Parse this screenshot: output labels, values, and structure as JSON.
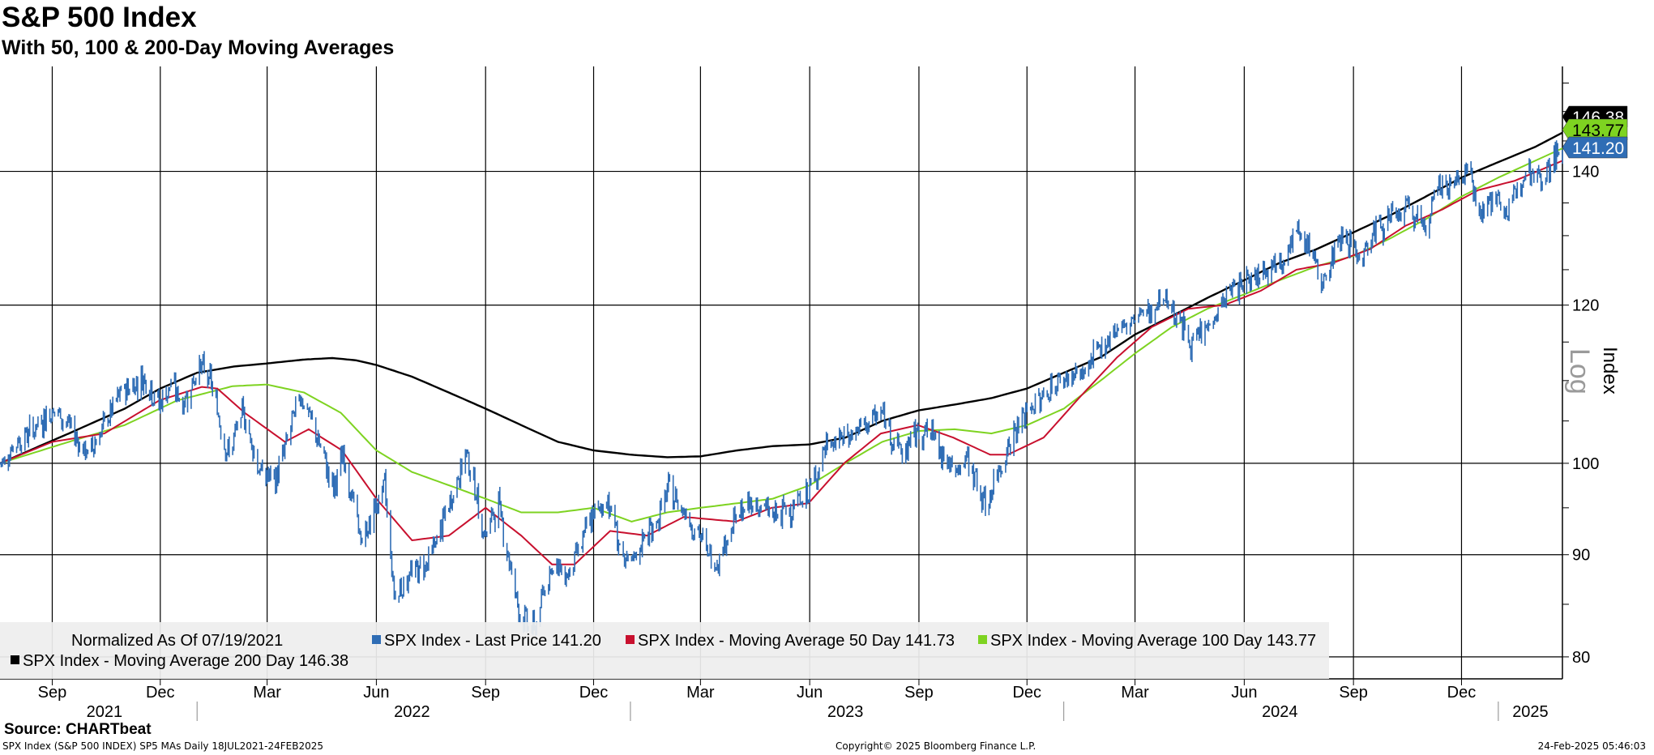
{
  "title": "S&P 500 Index",
  "subtitle": "With 50, 100 & 200-Day Moving Averages",
  "source": "Source: CHARTbeat",
  "footer": {
    "left": "SPX Index (S&P 500 INDEX) SP5 MAs  Daily 18JUL2021-24FEB2025",
    "center": "Copyright© 2025 Bloomberg Finance L.P.",
    "right": "24-Feb-2025 05:46:03"
  },
  "colors": {
    "price": "#2f6db5",
    "ma50": "#c8102e",
    "ma100": "#7ed321",
    "ma200": "#000000",
    "grid": "#000000",
    "legend_bg": "#eeeeee"
  },
  "chart_data": {
    "type": "line",
    "yscale": "log",
    "ylabel": "Index",
    "scale_label": "Log",
    "ylim": [
      78,
      158
    ],
    "yticks": [
      80,
      90,
      100,
      120,
      140
    ],
    "xlim": [
      "2021-07-19",
      "2025-02-24"
    ],
    "month_ticks": [
      "Sep",
      "Dec",
      "Mar",
      "Jun",
      "Sep",
      "Dec",
      "Mar",
      "Jun",
      "Sep",
      "Dec",
      "Mar",
      "Jun",
      "Sep",
      "Dec"
    ],
    "month_dates": [
      "2021-09-01",
      "2021-12-01",
      "2022-03-01",
      "2022-06-01",
      "2022-09-01",
      "2022-12-01",
      "2023-03-01",
      "2023-06-01",
      "2023-09-01",
      "2023-12-01",
      "2024-03-01",
      "2024-06-01",
      "2024-09-01",
      "2024-12-01"
    ],
    "years": [
      "2021",
      "2022",
      "2023",
      "2024",
      "2025"
    ],
    "year_label_dates": [
      "2021-10-15",
      "2022-07-01",
      "2023-07-01",
      "2024-07-01",
      "2025-01-28"
    ],
    "year_boundaries": [
      "2022-01-01",
      "2023-01-01",
      "2024-01-01",
      "2025-01-01"
    ],
    "legend": {
      "normalized": "Normalized As Of 07/19/2021",
      "entries": [
        "SPX Index - Last Price 141.20",
        "SPX Index - Moving Average 50 Day 141.73",
        "SPX Index - Moving Average 100 Day 143.77",
        "SPX Index - Moving Average 200 Day 146.38"
      ]
    },
    "last_value_labels": [
      "146.38",
      "143.77",
      "141.20"
    ],
    "series": [
      {
        "name": "SPX Index - Last Price",
        "points": [
          [
            "2021-07-19",
            100
          ],
          [
            "2021-08-02",
            102.5
          ],
          [
            "2021-08-16",
            104
          ],
          [
            "2021-09-02",
            106.5
          ],
          [
            "2021-09-15",
            104.5
          ],
          [
            "2021-09-30",
            101
          ],
          [
            "2021-10-15",
            104.5
          ],
          [
            "2021-10-29",
            108.5
          ],
          [
            "2021-11-18",
            110.5
          ],
          [
            "2021-11-30",
            107
          ],
          [
            "2021-12-10",
            109.5
          ],
          [
            "2021-12-20",
            107
          ],
          [
            "2022-01-03",
            112
          ],
          [
            "2022-01-12",
            110
          ],
          [
            "2022-01-27",
            101
          ],
          [
            "2022-02-09",
            106
          ],
          [
            "2022-02-23",
            99
          ],
          [
            "2022-03-08",
            98
          ],
          [
            "2022-03-29",
            108.5
          ],
          [
            "2022-04-12",
            103
          ],
          [
            "2022-04-26",
            97
          ],
          [
            "2022-05-04",
            101
          ],
          [
            "2022-05-20",
            91
          ],
          [
            "2022-05-31",
            95
          ],
          [
            "2022-06-08",
            97.5
          ],
          [
            "2022-06-16",
            86
          ],
          [
            "2022-06-30",
            88
          ],
          [
            "2022-07-15",
            89.5
          ],
          [
            "2022-08-01",
            95
          ],
          [
            "2022-08-16",
            101.5
          ],
          [
            "2022-08-31",
            92
          ],
          [
            "2022-09-12",
            95.5
          ],
          [
            "2022-09-20",
            90
          ],
          [
            "2022-09-30",
            84
          ],
          [
            "2022-10-12",
            82.5
          ],
          [
            "2022-10-26",
            89
          ],
          [
            "2022-11-09",
            88
          ],
          [
            "2022-11-30",
            94
          ],
          [
            "2022-12-13",
            96
          ],
          [
            "2022-12-28",
            88.5
          ],
          [
            "2023-01-10",
            91
          ],
          [
            "2023-01-25",
            94
          ],
          [
            "2023-02-02",
            97
          ],
          [
            "2023-02-17",
            94.5
          ],
          [
            "2023-03-13",
            89
          ],
          [
            "2023-03-31",
            94
          ],
          [
            "2023-04-15",
            95.5
          ],
          [
            "2023-05-04",
            94
          ],
          [
            "2023-05-31",
            96.5
          ],
          [
            "2023-06-15",
            102
          ],
          [
            "2023-07-14",
            104
          ],
          [
            "2023-07-31",
            106
          ],
          [
            "2023-08-18",
            101
          ],
          [
            "2023-09-01",
            104
          ],
          [
            "2023-09-15",
            103
          ],
          [
            "2023-09-29",
            99
          ],
          [
            "2023-10-13",
            100.5
          ],
          [
            "2023-10-27",
            95
          ],
          [
            "2023-11-13",
            101.5
          ],
          [
            "2023-11-30",
            106
          ],
          [
            "2023-12-14",
            108
          ],
          [
            "2023-12-29",
            110
          ],
          [
            "2024-01-19",
            111
          ],
          [
            "2024-02-09",
            116
          ],
          [
            "2024-02-29",
            118
          ],
          [
            "2024-03-28",
            121
          ],
          [
            "2024-04-19",
            114.5
          ],
          [
            "2024-05-03",
            117.5
          ],
          [
            "2024-05-21",
            122
          ],
          [
            "2024-06-14",
            125
          ],
          [
            "2024-06-28",
            126
          ],
          [
            "2024-07-16",
            130
          ],
          [
            "2024-07-31",
            127
          ],
          [
            "2024-08-05",
            121
          ],
          [
            "2024-08-16",
            128.5
          ],
          [
            "2024-08-30",
            130
          ],
          [
            "2024-09-06",
            126
          ],
          [
            "2024-09-19",
            131
          ],
          [
            "2024-10-18",
            134
          ],
          [
            "2024-11-01",
            131.5
          ],
          [
            "2024-11-11",
            137
          ],
          [
            "2024-11-29",
            139
          ],
          [
            "2024-12-06",
            140
          ],
          [
            "2024-12-18",
            134
          ],
          [
            "2024-12-31",
            136
          ],
          [
            "2025-01-10",
            133
          ],
          [
            "2025-01-23",
            141
          ],
          [
            "2025-02-07",
            139
          ],
          [
            "2025-02-19",
            143
          ],
          [
            "2025-02-24",
            141.2
          ]
        ]
      },
      {
        "name": "SPX Index - Moving Average 50 Day",
        "points": [
          [
            "2021-07-19",
            100
          ],
          [
            "2021-09-01",
            102.5
          ],
          [
            "2021-10-15",
            103.5
          ],
          [
            "2021-11-30",
            107.5
          ],
          [
            "2022-01-05",
            109.2
          ],
          [
            "2022-01-18",
            109
          ],
          [
            "2022-02-10",
            106
          ],
          [
            "2022-03-16",
            102.5
          ],
          [
            "2022-04-05",
            104
          ],
          [
            "2022-05-03",
            101.5
          ],
          [
            "2022-06-01",
            96
          ],
          [
            "2022-07-01",
            91.5
          ],
          [
            "2022-08-01",
            92
          ],
          [
            "2022-09-01",
            95
          ],
          [
            "2022-10-01",
            92
          ],
          [
            "2022-10-27",
            89
          ],
          [
            "2022-11-15",
            89
          ],
          [
            "2022-12-15",
            92.5
          ],
          [
            "2023-01-15",
            92
          ],
          [
            "2023-02-15",
            94
          ],
          [
            "2023-03-31",
            93.5
          ],
          [
            "2023-04-30",
            95
          ],
          [
            "2023-05-31",
            95.5
          ],
          [
            "2023-06-30",
            100
          ],
          [
            "2023-07-31",
            103.5
          ],
          [
            "2023-08-31",
            104.5
          ],
          [
            "2023-09-30",
            103
          ],
          [
            "2023-10-31",
            101
          ],
          [
            "2023-11-15",
            101
          ],
          [
            "2023-12-15",
            103
          ],
          [
            "2024-01-15",
            108
          ],
          [
            "2024-02-15",
            113
          ],
          [
            "2024-03-15",
            117
          ],
          [
            "2024-04-15",
            119.5
          ],
          [
            "2024-05-15",
            120
          ],
          [
            "2024-06-15",
            122
          ],
          [
            "2024-07-15",
            125
          ],
          [
            "2024-08-15",
            126
          ],
          [
            "2024-09-15",
            128
          ],
          [
            "2024-10-15",
            131.5
          ],
          [
            "2024-11-15",
            134
          ],
          [
            "2024-12-15",
            137
          ],
          [
            "2025-01-15",
            138.5
          ],
          [
            "2025-02-24",
            141.73
          ]
        ]
      },
      {
        "name": "SPX Index - Moving Average 100 Day",
        "points": [
          [
            "2021-07-19",
            100
          ],
          [
            "2021-09-15",
            102.5
          ],
          [
            "2021-11-01",
            104.5
          ],
          [
            "2021-12-15",
            107.5
          ],
          [
            "2022-01-31",
            109.3
          ],
          [
            "2022-03-01",
            109.5
          ],
          [
            "2022-04-01",
            108.5
          ],
          [
            "2022-05-02",
            106
          ],
          [
            "2022-06-01",
            101.5
          ],
          [
            "2022-07-01",
            99
          ],
          [
            "2022-08-01",
            97.5
          ],
          [
            "2022-09-01",
            96
          ],
          [
            "2022-10-01",
            94.5
          ],
          [
            "2022-11-01",
            94.5
          ],
          [
            "2022-12-01",
            95
          ],
          [
            "2023-01-02",
            93.5
          ],
          [
            "2023-02-01",
            94.5
          ],
          [
            "2023-03-01",
            95
          ],
          [
            "2023-04-01",
            95.5
          ],
          [
            "2023-05-01",
            96
          ],
          [
            "2023-06-01",
            97.5
          ],
          [
            "2023-07-01",
            100
          ],
          [
            "2023-08-01",
            102.5
          ],
          [
            "2023-09-01",
            103.8
          ],
          [
            "2023-10-01",
            104
          ],
          [
            "2023-11-01",
            103.5
          ],
          [
            "2023-12-01",
            104.5
          ],
          [
            "2024-01-01",
            106.5
          ],
          [
            "2024-02-01",
            110
          ],
          [
            "2024-03-01",
            113.5
          ],
          [
            "2024-04-01",
            117
          ],
          [
            "2024-05-01",
            119.5
          ],
          [
            "2024-06-01",
            121.5
          ],
          [
            "2024-07-01",
            123.5
          ],
          [
            "2024-08-01",
            125.5
          ],
          [
            "2024-09-01",
            127
          ],
          [
            "2024-10-01",
            129.5
          ],
          [
            "2024-11-01",
            132.5
          ],
          [
            "2024-12-01",
            136
          ],
          [
            "2025-01-01",
            139
          ],
          [
            "2025-02-24",
            143.77
          ]
        ]
      },
      {
        "name": "SPX Index - Moving Average 200 Day",
        "points": [
          [
            "2021-07-19",
            100
          ],
          [
            "2021-09-15",
            103.5
          ],
          [
            "2021-11-01",
            106.5
          ],
          [
            "2021-12-01",
            109
          ],
          [
            "2022-01-01",
            111
          ],
          [
            "2022-02-01",
            111.8
          ],
          [
            "2022-03-01",
            112.2
          ],
          [
            "2022-04-01",
            112.7
          ],
          [
            "2022-04-25",
            112.9
          ],
          [
            "2022-05-15",
            112.6
          ],
          [
            "2022-06-01",
            112
          ],
          [
            "2022-07-01",
            110.5
          ],
          [
            "2022-08-01",
            108.5
          ],
          [
            "2022-09-01",
            106.5
          ],
          [
            "2022-10-01",
            104.5
          ],
          [
            "2022-11-01",
            102.5
          ],
          [
            "2022-12-01",
            101.5
          ],
          [
            "2023-01-01",
            101
          ],
          [
            "2023-02-01",
            100.7
          ],
          [
            "2023-03-01",
            100.8
          ],
          [
            "2023-04-01",
            101.5
          ],
          [
            "2023-05-01",
            102
          ],
          [
            "2023-06-01",
            102.2
          ],
          [
            "2023-07-01",
            103
          ],
          [
            "2023-08-01",
            105
          ],
          [
            "2023-09-01",
            106.3
          ],
          [
            "2023-10-01",
            107
          ],
          [
            "2023-11-01",
            107.8
          ],
          [
            "2023-12-01",
            109
          ],
          [
            "2024-01-01",
            111
          ],
          [
            "2024-02-01",
            113
          ],
          [
            "2024-03-01",
            116
          ],
          [
            "2024-04-01",
            118.5
          ],
          [
            "2024-05-01",
            121
          ],
          [
            "2024-06-01",
            123.5
          ],
          [
            "2024-07-01",
            126
          ],
          [
            "2024-08-01",
            128
          ],
          [
            "2024-09-01",
            130.5
          ],
          [
            "2024-10-01",
            133
          ],
          [
            "2024-11-01",
            136
          ],
          [
            "2024-12-01",
            139
          ],
          [
            "2025-01-01",
            141.5
          ],
          [
            "2025-02-01",
            144
          ],
          [
            "2025-02-24",
            146.38
          ]
        ]
      }
    ]
  }
}
